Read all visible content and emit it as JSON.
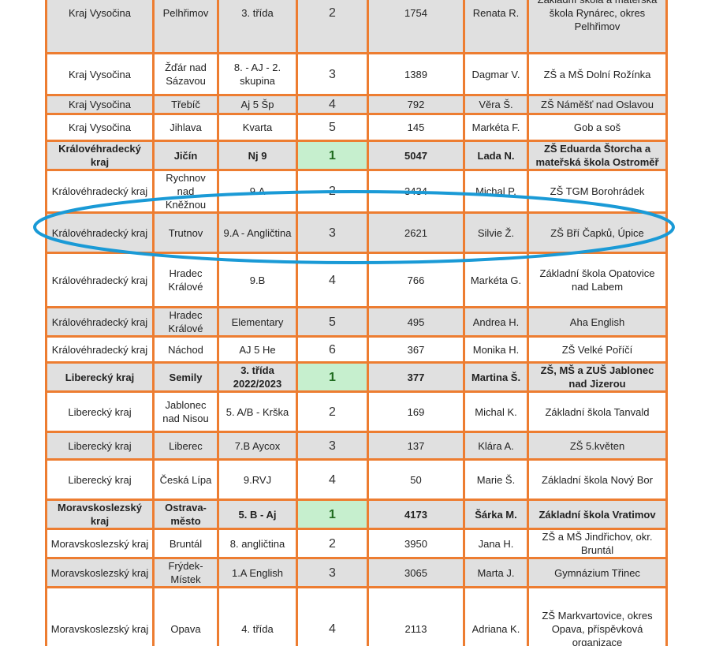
{
  "accent_colors": {
    "table_border": "#ed7d31",
    "winner_cell": "#c6efce",
    "annotation_ellipse": "#1a9ad6"
  },
  "rows": [
    {
      "region": "Kraj Vysočina",
      "district": "Pelhřimov",
      "class": "3. třída",
      "rank": "2",
      "points": "1754",
      "teacher": "Renata R.",
      "school": "Základní škola a mateřská škola Rynárec, okres Pelhřimov"
    },
    {
      "region": "Kraj Vysočina",
      "district": "Žďár nad Sázavou",
      "class": "8. - AJ - 2. skupina",
      "rank": "3",
      "points": "1389",
      "teacher": "Dagmar V.",
      "school": "ZŠ a MŠ Dolní Rožínka"
    },
    {
      "region": "Kraj Vysočina",
      "district": "Třebíč",
      "class": "Aj 5 Šp",
      "rank": "4",
      "points": "792",
      "teacher": "Věra Š.",
      "school": "ZŠ Náměšť nad Oslavou"
    },
    {
      "region": "Kraj Vysočina",
      "district": "Jihlava",
      "class": "Kvarta",
      "rank": "5",
      "points": "145",
      "teacher": "Markéta F.",
      "school": "Gob a soš"
    },
    {
      "region": "Královéhradecký kraj",
      "district": "Jičín",
      "class": "Nj 9",
      "rank": "1",
      "points": "5047",
      "teacher": "Lada N.",
      "school": "ZŠ Eduarda Štorcha a mateřská škola Ostroměř"
    },
    {
      "region": "Královéhradecký kraj",
      "district": "Rychnov nad Kněžnou",
      "class": "9.A",
      "rank": "2",
      "points": "3434",
      "teacher": "Michal P.",
      "school": "ZŠ TGM Borohrádek"
    },
    {
      "region": "Královéhradecký kraj",
      "district": "Trutnov",
      "class": "9.A - Angličtina",
      "rank": "3",
      "points": "2621",
      "teacher": "Silvie Ž.",
      "school": "ZŠ Bří Čapků, Úpice"
    },
    {
      "region": "Královéhradecký kraj",
      "district": "Hradec Králové",
      "class": "9.B",
      "rank": "4",
      "points": "766",
      "teacher": "Markéta G.",
      "school": "Základní škola Opatovice nad Labem"
    },
    {
      "region": "Královéhradecký kraj",
      "district": "Hradec Králové",
      "class": "Elementary",
      "rank": "5",
      "points": "495",
      "teacher": "Andrea H.",
      "school": "Aha English"
    },
    {
      "region": "Královéhradecký kraj",
      "district": "Náchod",
      "class": "AJ 5 He",
      "rank": "6",
      "points": "367",
      "teacher": "Monika H.",
      "school": "ZŠ Velké Poříčí"
    },
    {
      "region": "Liberecký kraj",
      "district": "Semily",
      "class": "3. třída 2022/2023",
      "rank": "1",
      "points": "377",
      "teacher": "Martina Š.",
      "school": "ZŠ, MŠ a ZUŠ Jablonec nad Jizerou"
    },
    {
      "region": "Liberecký kraj",
      "district": "Jablonec nad Nisou",
      "class": "5. A/B - Krška",
      "rank": "2",
      "points": "169",
      "teacher": "Michal K.",
      "school": "Základní škola Tanvald"
    },
    {
      "region": "Liberecký kraj",
      "district": "Liberec",
      "class": "7.B Aycox",
      "rank": "3",
      "points": "137",
      "teacher": "Klára A.",
      "school": "ZŠ 5.květen"
    },
    {
      "region": "Liberecký kraj",
      "district": "Česká Lípa",
      "class": "9.RVJ",
      "rank": "4",
      "points": "50",
      "teacher": "Marie Š.",
      "school": "Základní škola Nový Bor"
    },
    {
      "region": "Moravskoslezský kraj",
      "district": "Ostrava-město",
      "class": "5. B - Aj",
      "rank": "1",
      "points": "4173",
      "teacher": "Šárka M.",
      "school": "Základní škola Vratimov"
    },
    {
      "region": "Moravskoslezský kraj",
      "district": "Bruntál",
      "class": "8. angličtina",
      "rank": "2",
      "points": "3950",
      "teacher": "Jana H.",
      "school": "ZŠ a MŠ Jindřichov, okr. Bruntál"
    },
    {
      "region": "Moravskoslezský kraj",
      "district": "Frýdek-Místek",
      "class": "1.A English",
      "rank": "3",
      "points": "3065",
      "teacher": "Marta J.",
      "school": "Gymnázium Třinec"
    },
    {
      "region": "Moravskoslezský kraj",
      "district": "Opava",
      "class": "4. třída",
      "rank": "4",
      "points": "2113",
      "teacher": "Adriana K.",
      "school": "ZŠ Markvartovice, okres Opava, příspěvková organizace"
    }
  ]
}
